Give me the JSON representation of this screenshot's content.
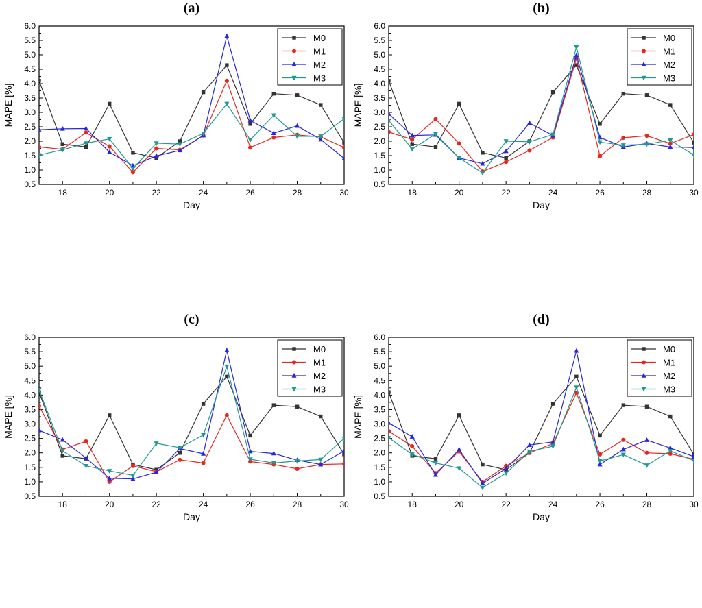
{
  "figure": {
    "series_names": [
      "M0",
      "M1",
      "M2",
      "M3"
    ],
    "series_colors": {
      "M0": "#333333",
      "M1": "#e8261f",
      "M2": "#2626e0",
      "M3": "#1f9a91"
    },
    "series_markers": {
      "M0": "square",
      "M1": "circle",
      "M2": "triangle-up",
      "M3": "triangle-down"
    }
  },
  "chart_data": [
    {
      "type": "line",
      "title": "(a)",
      "xlabel": "Day",
      "ylabel": "MAPE [%]",
      "xlim": [
        17,
        30
      ],
      "ylim": [
        0.5,
        6.0
      ],
      "xticks": [
        18,
        20,
        22,
        24,
        26,
        28,
        30
      ],
      "yticks": [
        "0.5",
        "1.0",
        "1.5",
        "2.0",
        "2.5",
        "3.0",
        "3.5",
        "4.0",
        "4.5",
        "5.0",
        "5.5",
        "6.0"
      ],
      "legend": "top-right",
      "x": [
        17,
        18,
        19,
        20,
        21,
        22,
        23,
        24,
        25,
        26,
        27,
        28,
        29,
        30
      ],
      "series": [
        {
          "name": "M0",
          "values": [
            4.1,
            1.9,
            1.8,
            3.3,
            1.6,
            1.42,
            2.0,
            3.7,
            4.64,
            2.6,
            3.65,
            3.6,
            3.26,
            1.95
          ]
        },
        {
          "name": "M1",
          "values": [
            1.8,
            1.72,
            2.3,
            1.82,
            0.92,
            1.75,
            1.7,
            2.2,
            4.1,
            1.78,
            2.13,
            2.22,
            2.15,
            1.78
          ]
        },
        {
          "name": "M2",
          "values": [
            2.4,
            2.43,
            2.44,
            1.62,
            1.15,
            1.49,
            1.68,
            2.2,
            5.65,
            2.72,
            2.28,
            2.53,
            2.06,
            1.4
          ]
        },
        {
          "name": "M3",
          "values": [
            1.52,
            1.7,
            1.93,
            2.08,
            1.05,
            1.93,
            1.9,
            2.27,
            3.3,
            2.05,
            2.9,
            2.17,
            2.17,
            2.78
          ]
        }
      ]
    },
    {
      "type": "line",
      "title": "(b)",
      "xlabel": "Day",
      "ylabel": "MAPE [%]",
      "xlim": [
        17,
        30
      ],
      "ylim": [
        0.5,
        6.0
      ],
      "xticks": [
        18,
        20,
        22,
        24,
        26,
        28,
        30
      ],
      "yticks": [
        "0.5",
        "1.0",
        "1.5",
        "2.0",
        "2.5",
        "3.0",
        "3.5",
        "4.0",
        "4.5",
        "5.0",
        "5.5",
        "6.0"
      ],
      "legend": "top-right",
      "x": [
        17,
        18,
        19,
        20,
        21,
        22,
        23,
        24,
        25,
        26,
        27,
        28,
        29,
        30
      ],
      "series": [
        {
          "name": "M0",
          "values": [
            4.1,
            1.9,
            1.8,
            3.3,
            1.6,
            1.42,
            2.0,
            3.7,
            4.64,
            2.6,
            3.65,
            3.6,
            3.26,
            1.95
          ]
        },
        {
          "name": "M1",
          "values": [
            2.32,
            2.06,
            2.77,
            1.92,
            0.95,
            1.28,
            1.68,
            2.13,
            4.87,
            1.48,
            2.12,
            2.19,
            1.92,
            2.23
          ]
        },
        {
          "name": "M2",
          "values": [
            2.95,
            2.2,
            2.22,
            1.42,
            1.22,
            1.65,
            2.63,
            2.2,
            4.98,
            2.13,
            1.8,
            1.92,
            1.8,
            1.78
          ]
        },
        {
          "name": "M3",
          "values": [
            2.72,
            1.73,
            2.25,
            1.42,
            0.9,
            2.0,
            1.98,
            2.23,
            5.27,
            1.97,
            1.86,
            1.9,
            2.03,
            1.52
          ]
        }
      ]
    },
    {
      "type": "line",
      "title": "(c)",
      "xlabel": "Day",
      "ylabel": "MAPE [%]",
      "xlim": [
        17,
        30
      ],
      "ylim": [
        0.5,
        6.0
      ],
      "xticks": [
        18,
        20,
        22,
        24,
        26,
        28,
        30
      ],
      "yticks": [
        "0.5",
        "1.0",
        "1.5",
        "2.0",
        "2.5",
        "3.0",
        "3.5",
        "4.0",
        "4.5",
        "5.0",
        "5.5",
        "6.0"
      ],
      "legend": "top-right",
      "x": [
        17,
        18,
        19,
        20,
        21,
        22,
        23,
        24,
        25,
        26,
        27,
        28,
        29,
        30
      ],
      "series": [
        {
          "name": "M0",
          "values": [
            4.1,
            1.9,
            1.8,
            3.3,
            1.6,
            1.42,
            2.0,
            3.7,
            4.64,
            2.6,
            3.65,
            3.6,
            3.26,
            1.95
          ]
        },
        {
          "name": "M1",
          "values": [
            3.62,
            2.12,
            2.4,
            1.0,
            1.55,
            1.35,
            1.76,
            1.65,
            3.3,
            1.7,
            1.6,
            1.45,
            1.6,
            1.62
          ]
        },
        {
          "name": "M2",
          "values": [
            2.78,
            2.45,
            1.82,
            1.12,
            1.1,
            1.33,
            2.15,
            1.97,
            5.55,
            2.05,
            1.98,
            1.75,
            1.6,
            2.07
          ]
        },
        {
          "name": "M3",
          "values": [
            4.18,
            2.07,
            1.55,
            1.38,
            1.22,
            2.33,
            2.18,
            2.62,
            4.99,
            1.78,
            1.65,
            1.72,
            1.77,
            2.5
          ]
        }
      ]
    },
    {
      "type": "line",
      "title": "(d)",
      "xlabel": "Day",
      "ylabel": "MAPE [%]",
      "xlim": [
        17,
        30
      ],
      "ylim": [
        0.5,
        6.0
      ],
      "xticks": [
        18,
        20,
        22,
        24,
        26,
        28,
        30
      ],
      "yticks": [
        "0.5",
        "1.0",
        "1.5",
        "2.0",
        "2.5",
        "3.0",
        "3.5",
        "4.0",
        "4.5",
        "5.0",
        "5.5",
        "6.0"
      ],
      "legend": "top-right",
      "x": [
        17,
        18,
        19,
        20,
        21,
        22,
        23,
        24,
        25,
        26,
        27,
        28,
        29,
        30
      ],
      "series": [
        {
          "name": "M0",
          "values": [
            4.1,
            1.9,
            1.8,
            3.3,
            1.6,
            1.42,
            2.0,
            3.7,
            4.64,
            2.6,
            3.65,
            3.6,
            3.26,
            1.95
          ]
        },
        {
          "name": "M1",
          "values": [
            2.75,
            2.23,
            1.3,
            2.05,
            1.0,
            1.55,
            2.0,
            2.32,
            4.08,
            1.95,
            2.45,
            2.0,
            1.97,
            1.78
          ]
        },
        {
          "name": "M2",
          "values": [
            3.04,
            2.56,
            1.24,
            2.12,
            0.95,
            1.46,
            2.27,
            2.38,
            5.53,
            1.6,
            2.12,
            2.44,
            2.17,
            1.87
          ]
        },
        {
          "name": "M3",
          "values": [
            2.52,
            1.95,
            1.65,
            1.47,
            0.8,
            1.3,
            2.05,
            2.23,
            4.27,
            1.72,
            1.94,
            1.57,
            2.07,
            1.73
          ]
        }
      ]
    }
  ]
}
